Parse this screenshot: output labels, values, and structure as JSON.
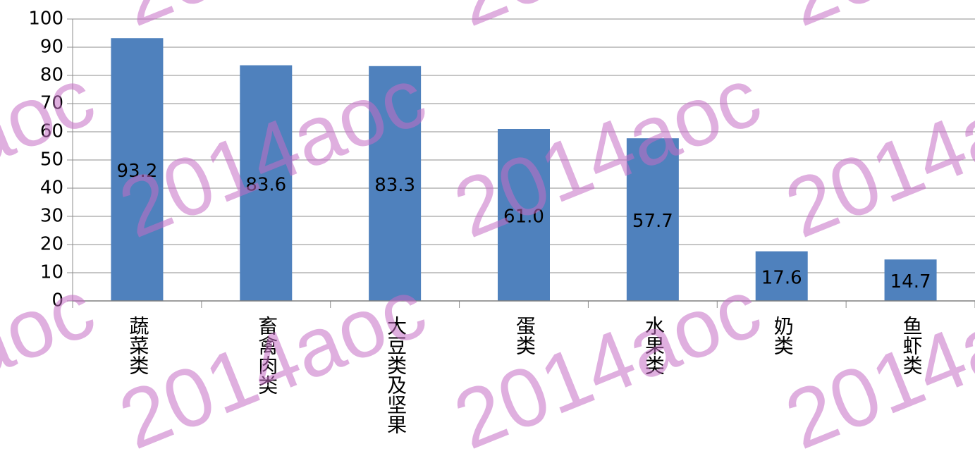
{
  "chart_data": {
    "type": "bar",
    "categories": [
      "蔬菜类",
      "畜禽肉类",
      "大豆类及坚果",
      "蛋类",
      "水果类",
      "奶类",
      "鱼虾类"
    ],
    "values": [
      93.2,
      83.6,
      83.3,
      61.0,
      57.7,
      17.6,
      14.7
    ],
    "value_labels": [
      "93.2",
      "83.6",
      "83.3",
      "61.0",
      "57.7",
      "17.6",
      "14.7"
    ],
    "color": "#4f81bd",
    "ylim": [
      0,
      100
    ],
    "yticks": [
      0,
      10,
      20,
      30,
      40,
      50,
      60,
      70,
      80,
      90,
      100
    ],
    "grid": true,
    "watermark": "2014aoc"
  }
}
